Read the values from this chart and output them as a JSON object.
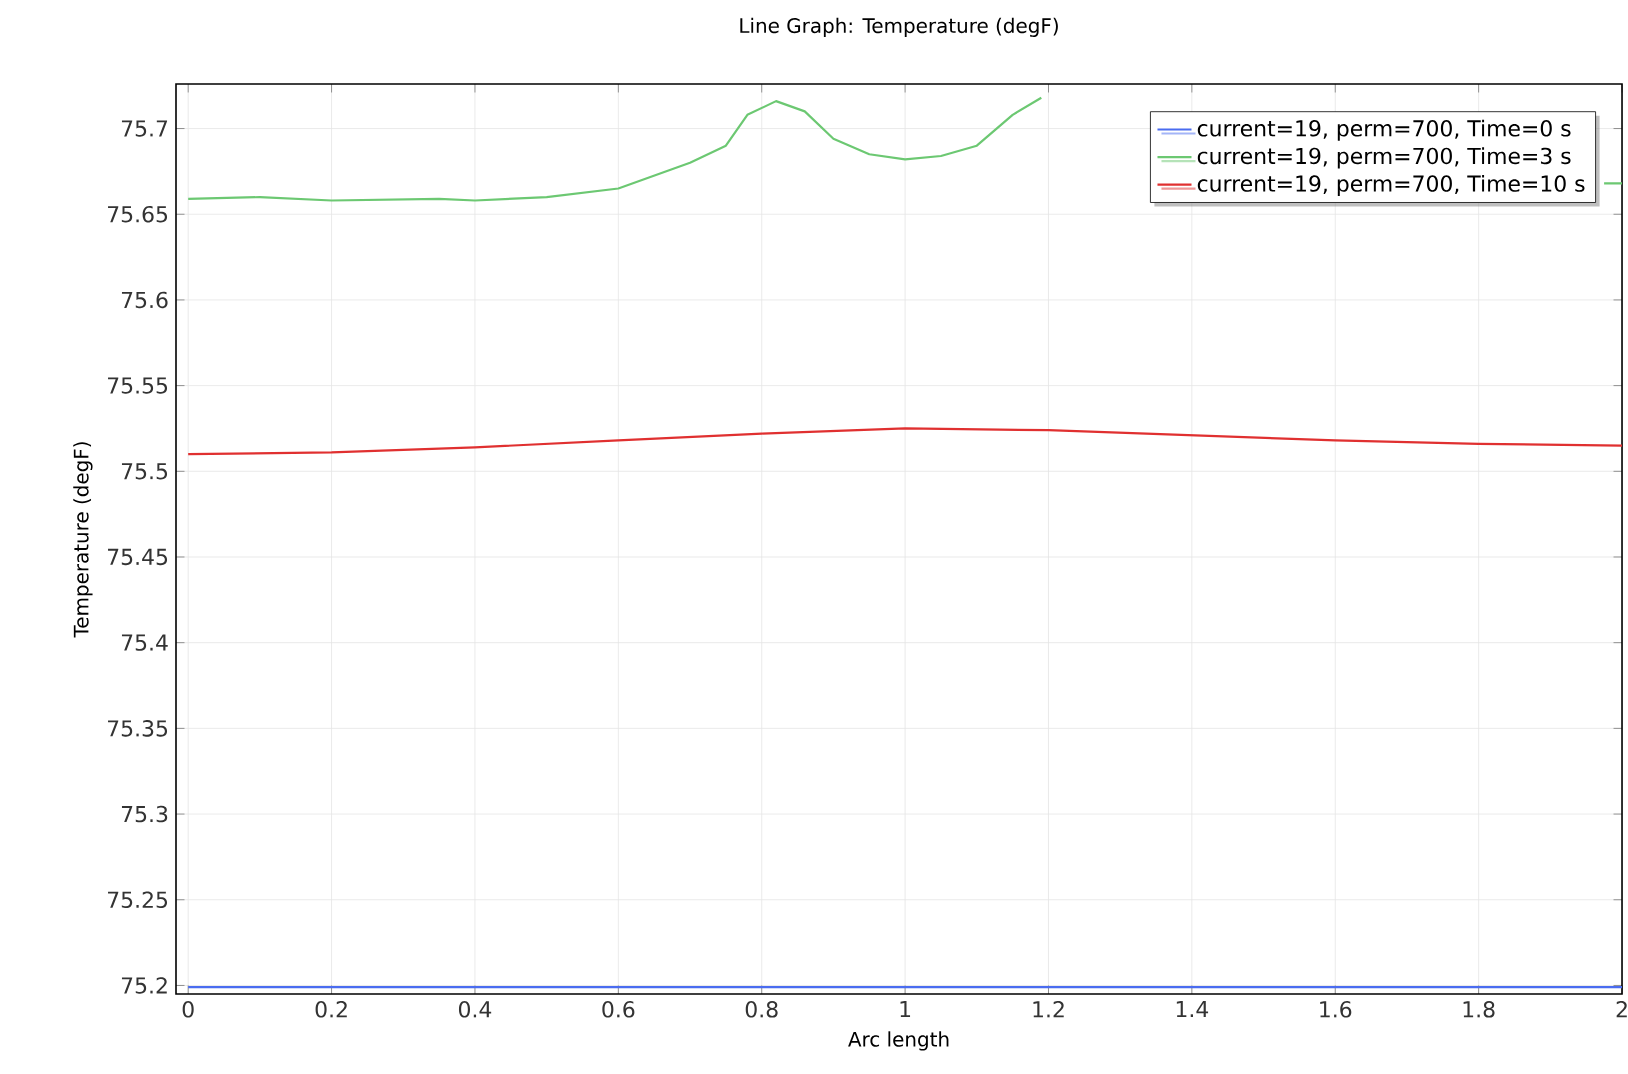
{
  "chart_data": {
    "type": "line",
    "title": "Line Graph: Temperature (degF)",
    "xlabel": "Arc length",
    "ylabel": "Temperature (degF)",
    "xlim": [
      -0.017,
      2
    ],
    "ylim": [
      75.195,
      75.726
    ],
    "xticks": [
      0,
      0.2,
      0.4,
      0.6,
      0.8,
      1,
      1.2,
      1.4,
      1.6,
      1.8,
      2
    ],
    "yticks": [
      75.2,
      75.25,
      75.3,
      75.35,
      75.4,
      75.45,
      75.5,
      75.55,
      75.6,
      75.65,
      75.7
    ],
    "grid": true,
    "legend": "top right",
    "marker": "none",
    "line_style": "solid",
    "series": [
      {
        "name": "current=19, perm=700, Time=0 s",
        "color": "#4a6cf0",
        "x": [
          0,
          0.5,
          1,
          1.5,
          2
        ],
        "values": [
          75.199,
          75.199,
          75.199,
          75.199,
          75.199
        ]
      },
      {
        "name": "current=19, perm=700, Time=3 s",
        "color": "#6cc872",
        "x": [
          0,
          0.1,
          0.2,
          0.35,
          0.4,
          0.5,
          0.6,
          0.7,
          0.75,
          0.78,
          0.82,
          0.86,
          0.9,
          0.95,
          1.0,
          1.05,
          1.1,
          1.15,
          1.19,
          1.22,
          1.975,
          2.0
        ],
        "values": [
          75.659,
          75.66,
          75.658,
          75.659,
          75.658,
          75.66,
          75.665,
          75.68,
          75.69,
          75.708,
          75.716,
          75.71,
          75.694,
          75.685,
          75.682,
          75.684,
          75.69,
          75.708,
          75.718,
          null,
          75.668,
          75.668
        ]
      },
      {
        "name": "current=19, perm=700, Time=10 s",
        "color": "#e03030",
        "x": [
          0,
          0.2,
          0.4,
          0.6,
          0.8,
          1.0,
          1.2,
          1.4,
          1.6,
          1.8,
          2.0
        ],
        "values": [
          75.51,
          75.511,
          75.514,
          75.518,
          75.522,
          75.525,
          75.524,
          75.521,
          75.518,
          75.516,
          75.515
        ]
      }
    ]
  }
}
